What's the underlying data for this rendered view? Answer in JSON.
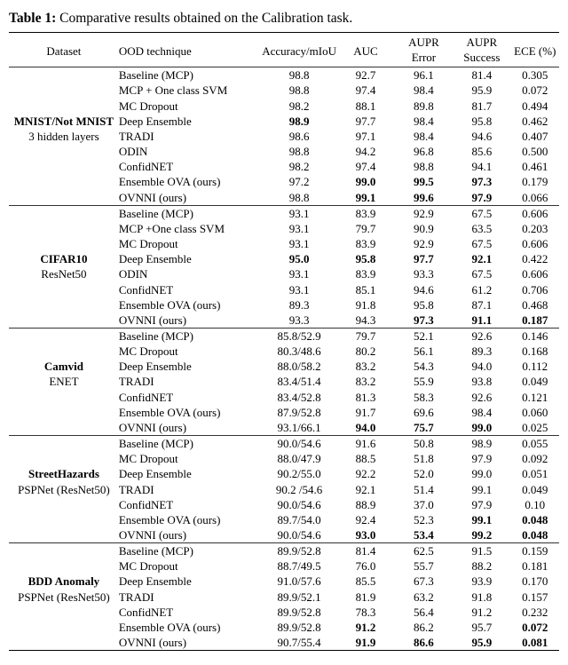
{
  "caption": {
    "label": "Table 1:",
    "text": "Comparative results obtained on the Calibration task."
  },
  "headers": {
    "dataset": "Dataset",
    "tech": "OOD technique",
    "acc": "Accuracy/mIoU",
    "auc": "AUC",
    "aupr": "AUPR",
    "aupr2": "AUPR",
    "ece": "ECE (%)",
    "error": "Error",
    "success": "Success"
  },
  "groups": [
    {
      "dsName": "MNIST/Not MNIST",
      "dsSub": "3 hidden layers",
      "rows": [
        {
          "tech": "Baseline (MCP)",
          "acc": "98.8",
          "auc": "92.7",
          "auprE": "96.1",
          "auprS": "81.4",
          "ece": "0.305"
        },
        {
          "tech": "MCP + One class SVM",
          "acc": "98.8",
          "auc": "97.4",
          "auprE": "98.4",
          "auprS": "95.9",
          "ece": "0.072"
        },
        {
          "tech": "MC Dropout",
          "acc": "98.2",
          "auc": "88.1",
          "auprE": "89.8",
          "auprS": "81.7",
          "ece": "0.494"
        },
        {
          "tech": "Deep Ensemble",
          "acc": "98.9",
          "accB": true,
          "auc": "97.7",
          "auprE": "98.4",
          "auprS": "95.8",
          "ece": "0.462"
        },
        {
          "tech": "TRADI",
          "acc": "98.6",
          "auc": "97.1",
          "auprE": "98.4",
          "auprS": "94.6",
          "ece": "0.407"
        },
        {
          "tech": "ODIN",
          "acc": "98.8",
          "auc": "94.2",
          "auprE": "96.8",
          "auprS": "85.6",
          "ece": "0.500"
        },
        {
          "tech": "ConfidNET",
          "acc": "98.2",
          "auc": "97.4",
          "auprE": "98.8",
          "auprS": "94.1",
          "ece": "0.461"
        },
        {
          "tech": "Ensemble OVA (ours)",
          "acc": "97.2",
          "auc": "99.0",
          "aucB": true,
          "auprE": "99.5",
          "auprEB": true,
          "auprS": "97.3",
          "auprSB": true,
          "ece": "0.179"
        },
        {
          "tech": "OVNNI (ours)",
          "acc": "98.8",
          "auc": "99.1",
          "aucB": true,
          "auprE": "99.6",
          "auprEB": true,
          "auprS": "97.9",
          "auprSB": true,
          "ece": "0.066"
        }
      ],
      "dsAt": 3
    },
    {
      "dsName": "CIFAR10",
      "dsSub": "ResNet50",
      "rows": [
        {
          "tech": "Baseline (MCP)",
          "acc": "93.1",
          "auc": "83.9",
          "auprE": "92.9",
          "auprS": "67.5",
          "ece": "0.606"
        },
        {
          "tech": "MCP +One class SVM",
          "acc": "93.1",
          "auc": "79.7",
          "auprE": "90.9",
          "auprS": "63.5",
          "ece": "0.203"
        },
        {
          "tech": "MC Dropout",
          "acc": "93.1",
          "auc": "83.9",
          "auprE": "92.9",
          "auprS": "67.5",
          "ece": "0.606"
        },
        {
          "tech": "Deep Ensemble",
          "acc": "95.0",
          "accB": true,
          "auc": "95.8",
          "aucB": true,
          "auprE": "97.7",
          "auprEB": true,
          "auprS": "92.1",
          "auprSB": true,
          "ece": "0.422"
        },
        {
          "tech": "ODIN",
          "acc": "93.1",
          "auc": "83.9",
          "auprE": "93.3",
          "auprS": "67.5",
          "ece": "0.606"
        },
        {
          "tech": "ConfidNET",
          "acc": "93.1",
          "auc": "85.1",
          "auprE": "94.6",
          "auprS": "61.2",
          "ece": "0.706"
        },
        {
          "tech": "Ensemble OVA (ours)",
          "acc": "89.3",
          "auc": "91.8",
          "auprE": "95.8",
          "auprS": "87.1",
          "ece": "0.468"
        },
        {
          "tech": "OVNNI (ours)",
          "acc": "93.3",
          "auc": "94.3",
          "auprE": "97.3",
          "auprEB": true,
          "auprS": "91.1",
          "auprSB": true,
          "ece": "0.187",
          "eceB": true
        }
      ],
      "dsAt": 3
    },
    {
      "dsName": "Camvid",
      "dsSub": "ENET",
      "rows": [
        {
          "tech": "Baseline (MCP)",
          "acc": "85.8/52.9",
          "auc": "79.7",
          "auprE": "52.1",
          "auprS": "92.6",
          "ece": "0.146"
        },
        {
          "tech": "MC Dropout",
          "acc": "80.3/48.6",
          "auc": "80.2",
          "auprE": "56.1",
          "auprS": "89.3",
          "ece": "0.168"
        },
        {
          "tech": "Deep Ensemble",
          "acc": "88.0/58.2",
          "auc": "83.2",
          "auprE": "54.3",
          "auprS": "94.0",
          "ece": "0.112"
        },
        {
          "tech": "TRADI",
          "acc": "83.4/51.4",
          "auc": "83.2",
          "auprE": "55.9",
          "auprS": "93.8",
          "ece": "0.049"
        },
        {
          "tech": "ConfidNET",
          "acc": "83.4/52.8",
          "auc": "81.3",
          "auprE": "58.3",
          "auprS": "92.6",
          "ece": "0.121"
        },
        {
          "tech": "Ensemble OVA (ours)",
          "acc": "87.9/52.8",
          "auc": "91.7",
          "auprE": "69.6",
          "auprS": "98.4",
          "ece": "0.060"
        },
        {
          "tech": "OVNNI (ours)",
          "acc": "93.1/66.1",
          "auc": "94.0",
          "aucB": true,
          "auprE": "75.7",
          "auprEB": true,
          "auprS": "99.0",
          "auprSB": true,
          "ece": "0.025"
        }
      ],
      "dsAt": 2
    },
    {
      "dsName": "StreetHazards",
      "dsSub": "PSPNet (ResNet50)",
      "rows": [
        {
          "tech": "Baseline (MCP)",
          "acc": "90.0/54.6",
          "auc": "91.6",
          "auprE": "50.8",
          "auprS": "98.9",
          "ece": "0.055"
        },
        {
          "tech": "MC Dropout",
          "acc": "88.0/47.9",
          "auc": "88.5",
          "auprE": "51.8",
          "auprS": "97.9",
          "ece": "0.092"
        },
        {
          "tech": "Deep Ensemble",
          "acc": "90.2/55.0",
          "auc": "92.2",
          "auprE": "52.0",
          "auprS": "99.0",
          "ece": "0.051"
        },
        {
          "tech": "TRADI",
          "acc": "90.2 /54.6",
          "auc": "92.1",
          "auprE": "51.4",
          "auprS": "99.1",
          "ece": "0.049"
        },
        {
          "tech": "ConfidNET",
          "acc": "90.0/54.6",
          "auc": "88.9",
          "auprE": "37.0",
          "auprS": "97.9",
          "ece": "0.10"
        },
        {
          "tech": "Ensemble OVA (ours)",
          "acc": "89.7/54.0",
          "auc": "92.4",
          "auprE": "52.3",
          "auprS": "99.1",
          "auprSB": true,
          "ece": "0.048",
          "eceB": true
        },
        {
          "tech": "OVNNI (ours)",
          "acc": "90.0/54.6",
          "auc": "93.0",
          "aucB": true,
          "auprE": "53.4",
          "auprEB": true,
          "auprS": "99.2",
          "auprSB": true,
          "ece": "0.048",
          "eceB": true
        }
      ],
      "dsAt": 2
    },
    {
      "dsName": "BDD Anomaly",
      "dsSub": "PSPNet (ResNet50)",
      "rows": [
        {
          "tech": "Baseline (MCP)",
          "acc": "89.9/52.8",
          "auc": "81.4",
          "auprE": "62.5",
          "auprS": "91.5",
          "ece": "0.159"
        },
        {
          "tech": "MC Dropout",
          "acc": "88.7/49.5",
          "auc": "76.0",
          "auprE": "55.7",
          "auprS": "88.2",
          "ece": "0.181"
        },
        {
          "tech": "Deep Ensemble",
          "acc": "91.0/57.6",
          "auc": "85.5",
          "auprE": "67.3",
          "auprS": "93.9",
          "ece": "0.170"
        },
        {
          "tech": "TRADI",
          "acc": "89.9/52.1",
          "auc": "81.9",
          "auprE": "63.2",
          "auprS": "91.8",
          "ece": "0.157"
        },
        {
          "tech": "ConfidNET",
          "acc": "89.9/52.8",
          "auc": "78.3",
          "auprE": "56.4",
          "auprS": "91.2",
          "ece": "0.232"
        },
        {
          "tech": "Ensemble OVA (ours)",
          "acc": "89.9/52.8",
          "auc": "91.2",
          "aucB": true,
          "auprE": "86.2",
          "auprS": "95.7",
          "ece": "0.072",
          "eceB": true
        },
        {
          "tech": "OVNNI (ours)",
          "acc": "90.7/55.4",
          "auc": "91.9",
          "aucB": true,
          "auprE": "86.6",
          "auprEB": true,
          "auprS": "95.9",
          "auprSB": true,
          "ece": "0.081",
          "eceB": true
        }
      ],
      "dsAt": 2
    }
  ]
}
